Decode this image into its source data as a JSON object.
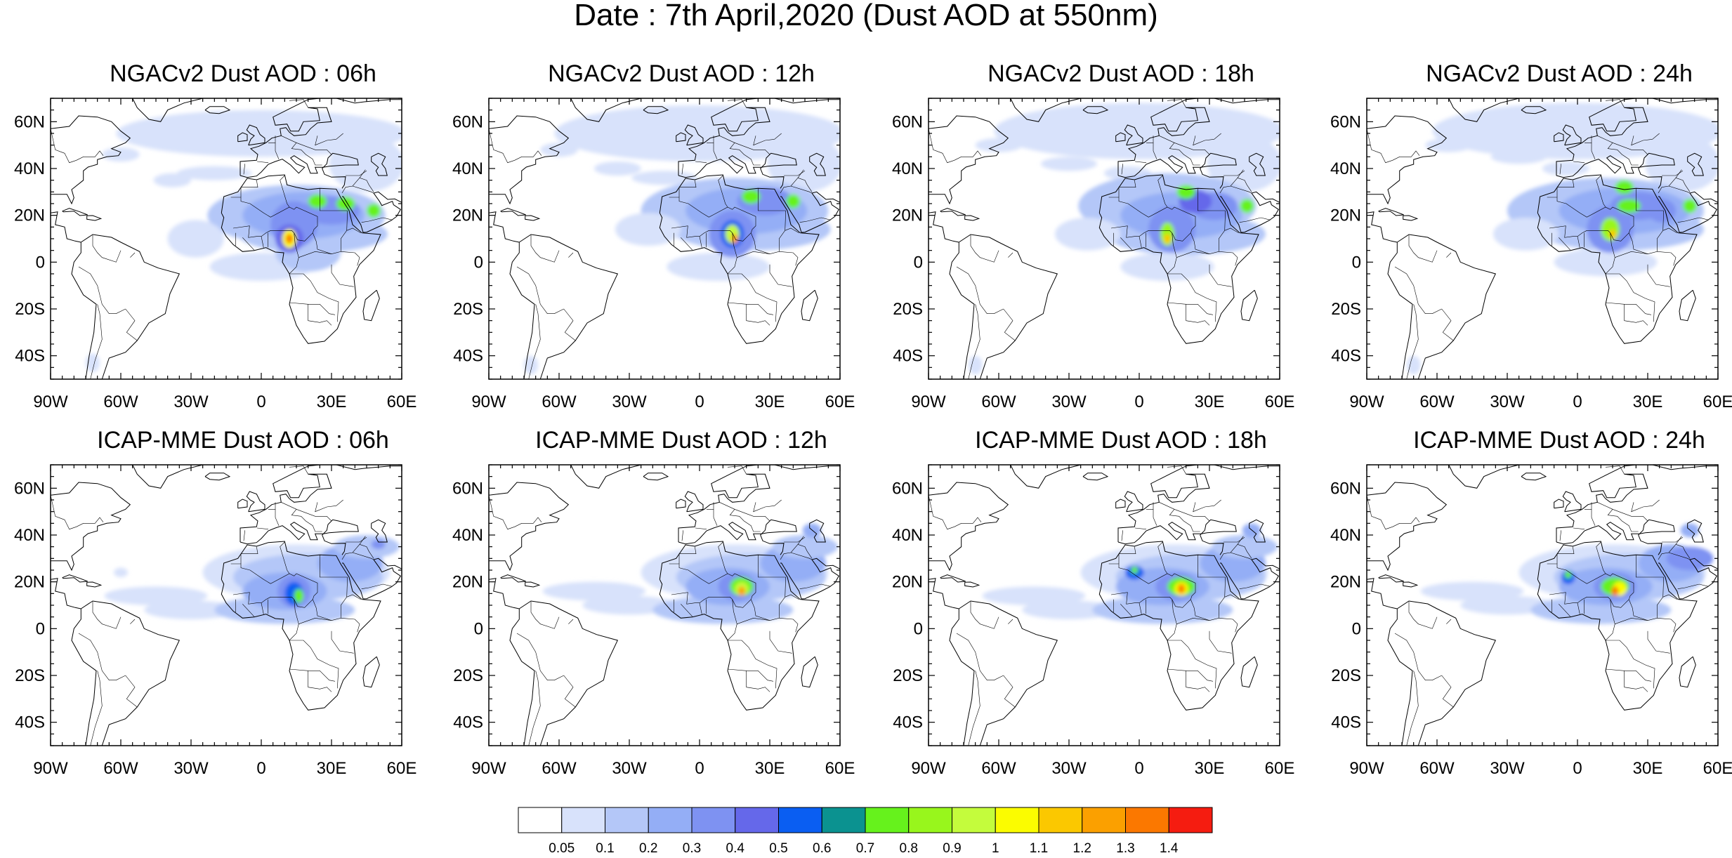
{
  "title": "Date : 7th April,2020 (Dust AOD at 550nm)",
  "lat_labels": [
    "60N",
    "40N",
    "20N",
    "0",
    "20S",
    "40S"
  ],
  "lon_labels": [
    "90W",
    "60W",
    "30W",
    "0",
    "30E",
    "60E"
  ],
  "panels": [
    {
      "title": "NGACv2 Dust AOD : 06h"
    },
    {
      "title": "NGACv2 Dust AOD : 12h"
    },
    {
      "title": "NGACv2 Dust AOD : 18h"
    },
    {
      "title": "NGACv2 Dust AOD : 24h"
    },
    {
      "title": "ICAP-MME Dust AOD : 06h"
    },
    {
      "title": "ICAP-MME Dust AOD : 12h"
    },
    {
      "title": "ICAP-MME Dust AOD : 18h"
    },
    {
      "title": "ICAP-MME Dust AOD : 24h"
    }
  ],
  "colorbar": {
    "labels": [
      "0.05",
      "0.1",
      "0.2",
      "0.3",
      "0.4",
      "0.5",
      "0.6",
      "0.7",
      "0.8",
      "0.9",
      "1",
      "1.1",
      "1.2",
      "1.3",
      "1.4"
    ],
    "colors": [
      "#ffffff",
      "#d8e2fb",
      "#b4c7f8",
      "#94aef6",
      "#7e92f2",
      "#6568ea",
      "#0a5ef2",
      "#0b9290",
      "#66f21c",
      "#98f61c",
      "#c4fc3c",
      "#fbfc00",
      "#fbc800",
      "#fba000",
      "#fb7800",
      "#f51c10"
    ]
  }
}
